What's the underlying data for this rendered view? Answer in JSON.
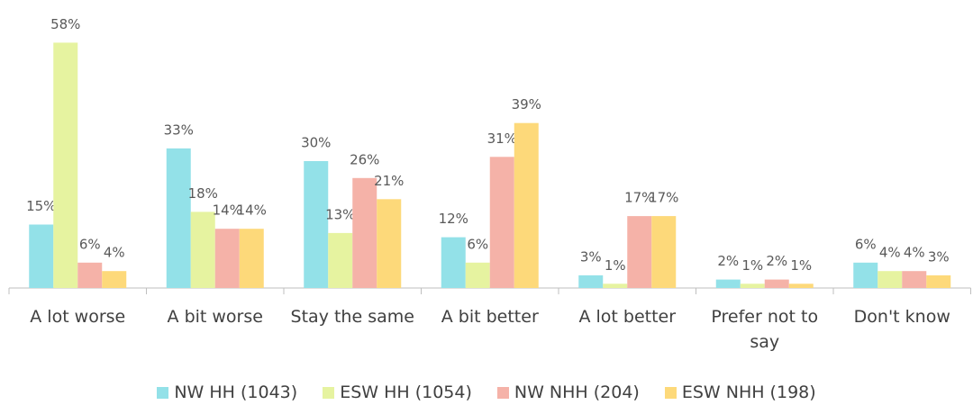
{
  "chart_data": {
    "type": "bar",
    "categories": [
      "A lot worse",
      "A bit worse",
      "Stay the same",
      "A bit better",
      "A lot better",
      "Prefer not to say",
      "Don't know"
    ],
    "series": [
      {
        "name": "NW HH (1043)",
        "color": "#93e1e8",
        "values": [
          15,
          33,
          30,
          12,
          3,
          2,
          6
        ],
        "value_labels": [
          "15%",
          "33%",
          "30%",
          "12%",
          "3%",
          "2%",
          "6%"
        ]
      },
      {
        "name": "ESW HH (1054)",
        "color": "#e6f3a0",
        "values": [
          58,
          18,
          13,
          6,
          1,
          1,
          4
        ],
        "value_labels": [
          "58%",
          "18%",
          "13%",
          "6%",
          "1%",
          "1%",
          "4%"
        ]
      },
      {
        "name": "NW NHH (204)",
        "color": "#f5b2a8",
        "values": [
          6,
          14,
          26,
          31,
          17,
          2,
          4
        ],
        "value_labels": [
          "6%",
          "14%",
          "26%",
          "31%",
          "17%",
          "2%",
          "4%"
        ]
      },
      {
        "name": "ESW NHH (198)",
        "color": "#fdd97a",
        "values": [
          4,
          14,
          21,
          39,
          17,
          1,
          3
        ],
        "value_labels": [
          "4%",
          "14%",
          "21%",
          "39%",
          "17%",
          "1%",
          "3%"
        ]
      }
    ],
    "ylim": [
      0,
      60
    ],
    "legend": "bottom"
  }
}
